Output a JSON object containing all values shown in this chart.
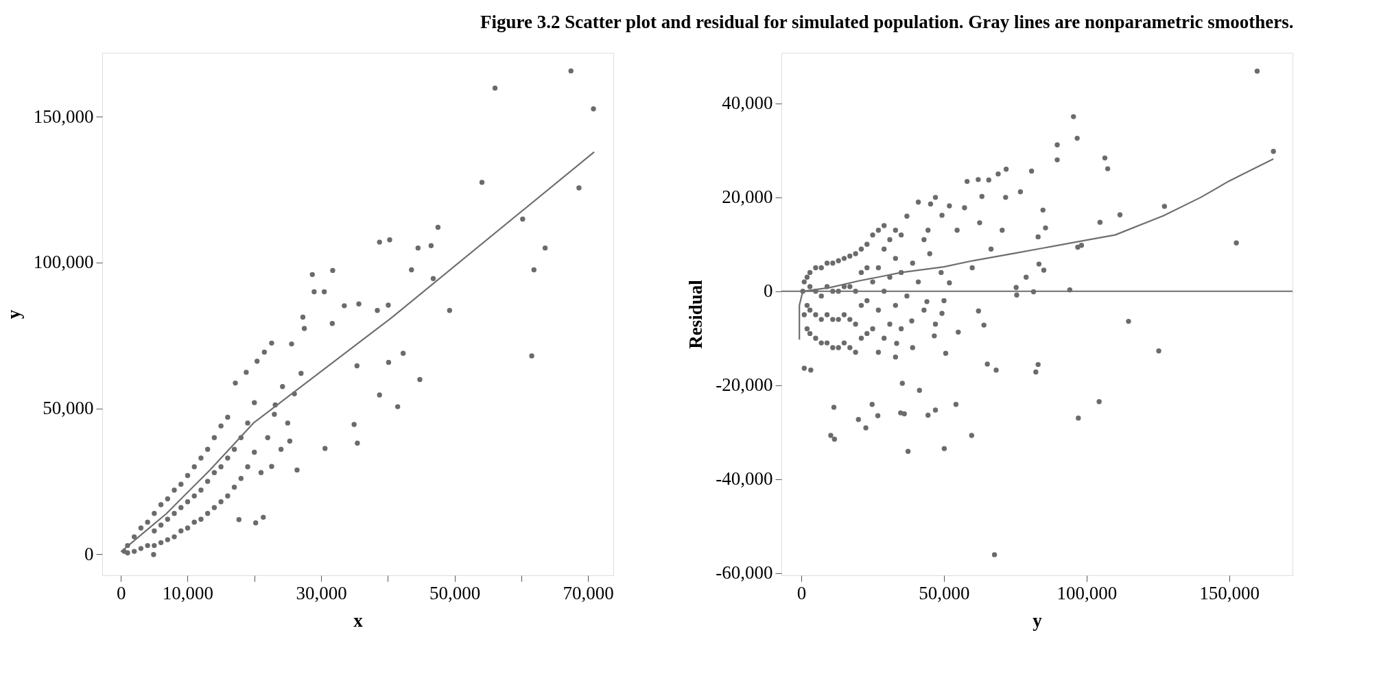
{
  "chart_data": [
    {
      "type": "scatter",
      "title": "Figure 3.2  Scatter plot and residual for simulated population. Gray lines are nonparametric smoothers.",
      "xlabel": "x",
      "ylabel": "y",
      "grid": false,
      "xlim": [
        -2800,
        73800
      ],
      "ylim": [
        -7200,
        171900
      ],
      "xticks": [
        0,
        {
          "value": 10000,
          "label": "10,000"
        },
        {
          "value": 20000,
          "label": null
        },
        {
          "value": 30000,
          "label": "30,000"
        },
        {
          "value": 40000,
          "label": null
        },
        {
          "value": 50000,
          "label": "50,000"
        },
        {
          "value": 60000,
          "label": null
        },
        {
          "value": 70000,
          "label": "70,000"
        }
      ],
      "yticks": [
        0,
        {
          "value": 50000,
          "label": "50,000"
        },
        {
          "value": 100000,
          "label": "100,000"
        },
        {
          "value": 150000,
          "label": "150,000"
        }
      ],
      "series": [
        {
          "marker": "circle",
          "color": "#6b6b6b",
          "x": [
            500,
            1000,
            1000,
            2000,
            2000,
            3000,
            3000,
            4000,
            4000,
            5000,
            5000,
            5000,
            6000,
            6000,
            6000,
            7000,
            7000,
            7000,
            8000,
            8000,
            8000,
            9000,
            9000,
            9000,
            10000,
            10000,
            10000,
            11000,
            11000,
            11000,
            12000,
            12000,
            12000,
            13000,
            13000,
            13000,
            14000,
            14000,
            14000,
            15000,
            15000,
            15000,
            16000,
            16000,
            16000,
            17000,
            17000,
            18000,
            18000,
            19000,
            19000,
            20000,
            20000,
            21000,
            22000,
            23000,
            24000,
            25000,
            26000,
            27000,
            4900,
            67450,
            56070,
            70820,
            54110,
            68650,
            60210,
            63580,
            61900,
            61570,
            47520,
            46490,
            44530,
            38760,
            40280,
            43550,
            46810,
            49260,
            40070,
            42300,
            40120,
            44800,
            41480,
            38760,
            35440,
            28690,
            31740,
            28960,
            30480,
            33480,
            35660,
            38430,
            27270,
            31680,
            35380,
            34950,
            30590,
            26400,
            21340,
            20200,
            17690,
            22590,
            25580,
            21500,
            27490,
            18780,
            17150,
            24220,
            20410,
            23130,
            25310,
            22590
          ],
          "values": [
            1000,
            500,
            3000,
            1000,
            6000,
            2000,
            9000,
            3000,
            11000,
            3000,
            8000,
            14000,
            4000,
            10000,
            17000,
            5000,
            12000,
            19000,
            6000,
            14000,
            22000,
            8000,
            16000,
            24000,
            9000,
            18000,
            27000,
            11000,
            20000,
            30000,
            12000,
            22000,
            33000,
            14000,
            25000,
            36000,
            16000,
            28000,
            40000,
            18000,
            30000,
            44000,
            20000,
            33000,
            47000,
            23000,
            36000,
            26000,
            40000,
            30000,
            45000,
            35000,
            52000,
            28000,
            40000,
            48000,
            36000,
            45000,
            55000,
            62000,
            -100,
            165700,
            159800,
            152700,
            127500,
            125600,
            114900,
            105000,
            97500,
            68000,
            112100,
            105800,
            105000,
            107000,
            107800,
            97500,
            94500,
            83600,
            85400,
            68900,
            65800,
            59900,
            50600,
            54600,
            38100,
            95900,
            97300,
            90000,
            90000,
            85200,
            85800,
            83600,
            81300,
            79100,
            64600,
            44500,
            36300,
            28900,
            12700,
            10800,
            11900,
            72400,
            72100,
            69300,
            77400,
            62400,
            58700,
            57500,
            66200,
            51200,
            38800,
            30100
          ]
        },
        {
          "type": "line",
          "color": "#6e6e6e",
          "x": [
            0,
            6800,
            13340,
            19870,
            40560,
            70930
          ],
          "values": [
            900,
            13900,
            28900,
            45000,
            81100,
            137900
          ]
        }
      ]
    },
    {
      "type": "scatter",
      "xlabel": "y",
      "ylabel": "Residual",
      "grid": false,
      "xlim": [
        -7000,
        172200
      ],
      "ylim": [
        -60500,
        50800
      ],
      "xticks": [
        0,
        {
          "value": 50000,
          "label": "50,000"
        },
        {
          "value": 100000,
          "label": "100,000"
        },
        {
          "value": 150000,
          "label": "150,000"
        }
      ],
      "yticks": [
        {
          "value": -60000,
          "label": "-60,000"
        },
        {
          "value": -40000,
          "label": "-40,000"
        },
        {
          "value": -20000,
          "label": "-20,000"
        },
        0,
        {
          "value": 20000,
          "label": "20,000"
        },
        {
          "value": 40000,
          "label": "40,000"
        }
      ],
      "ref_lines": [
        {
          "axis": "y",
          "value": 0,
          "color": "#6e6e6e"
        }
      ],
      "series": [
        {
          "marker": "circle",
          "color": "#6b6b6b",
          "x": [
            159800,
            165500,
            152500,
            95400,
            96700,
            89700,
            89700,
            106400,
            107400,
            127300,
            111700,
            104700,
            96900,
            98200,
            114700,
            125300,
            104400,
            97100,
            67700,
            82200,
            83000,
            68300,
            65200,
            59700,
            50100,
            37400,
            54200,
            47000,
            44400,
            41400,
            35400,
            36100,
            34800,
            26800,
            24800,
            22600,
            20000,
            11600,
            10300,
            11400,
            1000,
            3300,
            71800,
            69000,
            65700,
            62000,
            58100,
            63300,
            71600,
            76800,
            80700,
            84700,
            85600,
            83000,
            83300,
            85000,
            78800,
            81400,
            94100,
            75300,
            75500,
            64000,
            62100,
            55000,
            50600,
            44400,
            45300,
            51900,
            57200,
            49300,
            54600,
            62500,
            70400,
            66500,
            59900,
            51900,
            44000,
            38700,
            33400,
            49300,
            46600,
            500,
            1000,
            1000,
            2000,
            2000,
            2000,
            3000,
            3000,
            3000,
            3000,
            5000,
            5000,
            5000,
            5000,
            7000,
            7000,
            7000,
            7000,
            9000,
            9000,
            9000,
            9000,
            11000,
            11000,
            11000,
            11000,
            13000,
            13000,
            13000,
            13000,
            15000,
            15000,
            15000,
            15000,
            17000,
            17000,
            17000,
            17000,
            19000,
            19000,
            19000,
            19000,
            21000,
            21000,
            21000,
            21000,
            23000,
            23000,
            23000,
            23000,
            25000,
            25000,
            25000,
            27000,
            27000,
            27000,
            27000,
            29000,
            29000,
            29000,
            29000,
            31000,
            31000,
            31000,
            33000,
            33000,
            33000,
            33000,
            35000,
            35000,
            35000,
            37000,
            37000,
            39000,
            39000,
            41000,
            41000,
            43000,
            43000,
            45000,
            47000,
            47000,
            49000,
            50000
          ],
          "values": [
            46900,
            29800,
            10300,
            37200,
            32600,
            31200,
            28000,
            28400,
            26100,
            18100,
            16300,
            14700,
            9400,
            9800,
            -6400,
            -12700,
            -23500,
            -27000,
            -56100,
            -17200,
            -15600,
            -16800,
            -15500,
            -30700,
            -33500,
            -34100,
            -24100,
            -25300,
            -26400,
            -21100,
            -19600,
            -26100,
            -25900,
            -26500,
            -24100,
            -29100,
            -27300,
            -31500,
            -30700,
            -24700,
            -16400,
            -16800,
            26000,
            25000,
            23700,
            23800,
            23400,
            20200,
            20000,
            21200,
            25600,
            17300,
            13500,
            11600,
            5800,
            4500,
            3000,
            -100,
            300,
            800,
            -800,
            -7200,
            -4200,
            -8700,
            -13200,
            13000,
            18600,
            18200,
            17800,
            16200,
            13000,
            14600,
            13000,
            9000,
            5000,
            1800,
            -2200,
            -6300,
            -11100,
            -4700,
            -9500,
            0,
            -5000,
            2000,
            -8000,
            -3000,
            3000,
            -9000,
            -4000,
            1000,
            4000,
            -10000,
            -5000,
            0,
            5000,
            -11000,
            -6000,
            -1000,
            5000,
            -11000,
            -5000,
            1000,
            6000,
            -12000,
            -6000,
            0,
            6000,
            -12000,
            -6000,
            0,
            6500,
            -11000,
            -5000,
            1000,
            7000,
            -12000,
            -6000,
            1000,
            7500,
            -13000,
            -7000,
            0,
            8000,
            -10000,
            -3000,
            4000,
            9000,
            -9000,
            -2000,
            5000,
            10000,
            -8000,
            2000,
            12000,
            -13000,
            -4000,
            5000,
            13000,
            -10000,
            0,
            9000,
            14000,
            -7000,
            3000,
            11000,
            -14000,
            -3000,
            7000,
            13000,
            -8000,
            4000,
            12000,
            -1000,
            16000,
            -12000,
            6000,
            2000,
            19000,
            -4000,
            11000,
            8000,
            -7000,
            20000,
            4000,
            -2000
          ]
        },
        {
          "type": "line",
          "color": "#6e6e6e",
          "x": [
            -700,
            -700,
            500,
            10000,
            20000,
            26800,
            35000,
            50000,
            60000,
            75700,
            100000,
            110000,
            127000,
            140000,
            150000,
            165500
          ],
          "values": [
            -10300,
            -3000,
            0,
            800,
            2200,
            3000,
            4000,
            5200,
            6500,
            8200,
            10900,
            12000,
            16100,
            20000,
            23500,
            28200
          ]
        }
      ]
    }
  ]
}
